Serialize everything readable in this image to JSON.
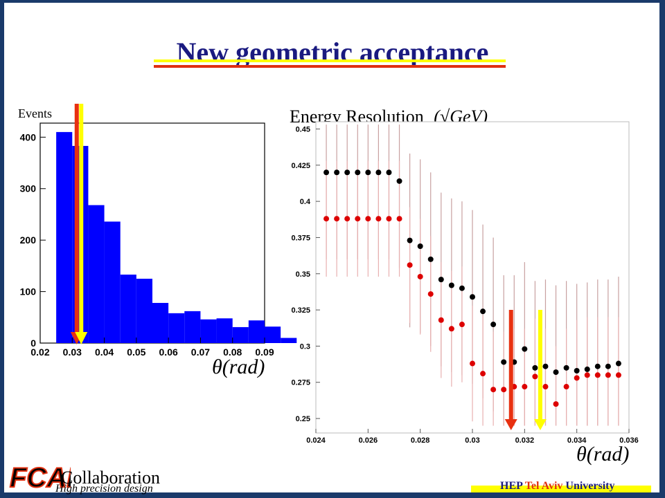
{
  "slide": {
    "title": "New geometric acceptance",
    "footer": {
      "logo_text": "FCAL",
      "collaboration": "Collaboration",
      "tagline": "High precision design",
      "university_prefix": "HEP ",
      "university_highlight": "Tel Aviv",
      "university_suffix": " University"
    },
    "colors": {
      "title": "#1a1a80",
      "red_line": "#e83010",
      "yellow_line": "#ffff00",
      "background": "#1a3a6a"
    }
  },
  "chart_data": [
    {
      "type": "bar",
      "ylabel": "Events",
      "xlabel": "θ(rad)",
      "xlim": [
        0.02,
        0.09
      ],
      "ylim": [
        0,
        430
      ],
      "xticks": [
        "0.02",
        "0.03",
        "0.04",
        "0.05",
        "0.06",
        "0.07",
        "0.08",
        "0.09"
      ],
      "yticks": [
        "0",
        "100",
        "200",
        "300",
        "400"
      ],
      "bin_width": 0.005,
      "bin_edges_start": 0.025,
      "values": [
        410,
        383,
        268,
        236,
        133,
        125,
        78,
        58,
        62,
        46,
        48,
        31,
        44,
        32,
        10
      ],
      "bar_color": "#0000ff",
      "markers": [
        {
          "x": 0.0314,
          "color": "#e83010"
        },
        {
          "x": 0.0328,
          "color": "#ffff00"
        }
      ]
    },
    {
      "type": "scatter",
      "ylabel": "Energy Resolution",
      "ylabel_unit": "(√GeV)",
      "xlabel": "θ(rad)",
      "xlim": [
        0.024,
        0.036
      ],
      "ylim": [
        0.24,
        0.455
      ],
      "xticks": [
        "0.024",
        "0.026",
        "0.028",
        "0.03",
        "0.032",
        "0.034",
        "0.036"
      ],
      "yticks": [
        "0.25",
        "0.275",
        "0.3",
        "0.325",
        "0.35",
        "0.375",
        "0.4",
        "0.425",
        "0.45"
      ],
      "series": [
        {
          "color": "#000000",
          "x": [
            0.0244,
            0.0252,
            0.026,
            0.0268,
            0.0276,
            0.0284,
            0.0292,
            0.03,
            0.0308,
            0.0316,
            0.0324,
            0.0332,
            0.034,
            0.0348,
            0.0356,
            0.0248,
            0.0256,
            0.0264,
            0.0272,
            0.028,
            0.0288,
            0.0296,
            0.0304,
            0.0312,
            0.032,
            0.0328,
            0.0336,
            0.0344,
            0.0352
          ],
          "y": [
            0.42,
            0.42,
            0.42,
            0.42,
            0.373,
            0.36,
            0.342,
            0.334,
            0.315,
            0.289,
            0.285,
            0.282,
            0.283,
            0.286,
            0.288,
            0.42,
            0.42,
            0.42,
            0.414,
            0.369,
            0.346,
            0.34,
            0.324,
            0.289,
            0.298,
            0.286,
            0.285,
            0.284,
            0.286
          ],
          "err": 0.06
        },
        {
          "color": "#dd0000",
          "x": [
            0.0244,
            0.0248,
            0.0252,
            0.0256,
            0.026,
            0.0264,
            0.0268,
            0.0272,
            0.0276,
            0.028,
            0.0284,
            0.0288,
            0.0292,
            0.0296,
            0.03,
            0.0304,
            0.0308,
            0.0312,
            0.0316,
            0.032,
            0.0324,
            0.0328,
            0.0332,
            0.0336,
            0.034,
            0.0344,
            0.0348,
            0.0352,
            0.0356
          ],
          "y": [
            0.388,
            0.388,
            0.388,
            0.388,
            0.388,
            0.388,
            0.388,
            0.388,
            0.356,
            0.348,
            0.336,
            0.318,
            0.312,
            0.315,
            0.288,
            0.281,
            0.27,
            0.27,
            0.272,
            0.272,
            0.279,
            0.272,
            0.26,
            0.272,
            0.278,
            0.28,
            0.28,
            0.28,
            0.28
          ],
          "err": 0.04
        }
      ],
      "markers": [
        {
          "x": 0.03148,
          "color": "#e83010"
        },
        {
          "x": 0.0326,
          "color": "#ffff00"
        }
      ]
    }
  ]
}
